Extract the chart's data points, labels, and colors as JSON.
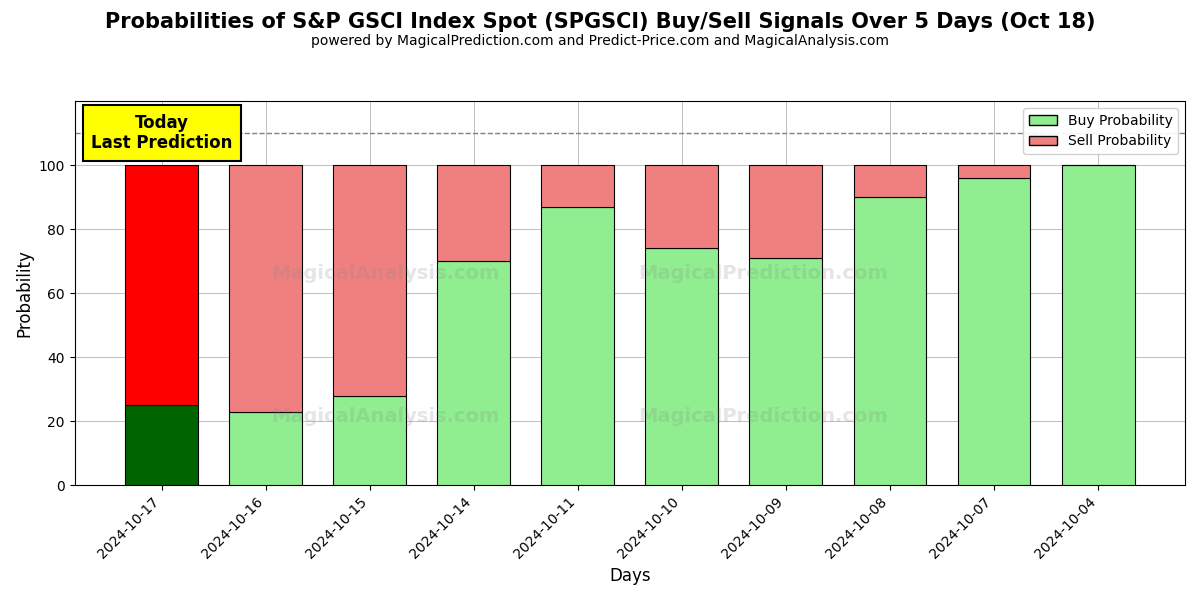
{
  "title": "Probabilities of S&P GSCI Index Spot (SPGSCI) Buy/Sell Signals Over 5 Days (Oct 18)",
  "subtitle": "powered by MagicalPrediction.com and Predict-Price.com and MagicalAnalysis.com",
  "xlabel": "Days",
  "ylabel": "Probability",
  "dates": [
    "2024-10-17",
    "2024-10-16",
    "2024-10-15",
    "2024-10-14",
    "2024-10-11",
    "2024-10-10",
    "2024-10-09",
    "2024-10-08",
    "2024-10-07",
    "2024-10-04"
  ],
  "buy_values": [
    25,
    23,
    28,
    70,
    87,
    74,
    71,
    90,
    96,
    100
  ],
  "sell_values": [
    75,
    77,
    72,
    30,
    13,
    26,
    29,
    10,
    4,
    0
  ],
  "today_bar_buy_color": "#006400",
  "today_bar_sell_color": "#FF0000",
  "regular_buy_color": "#90EE90",
  "regular_sell_color": "#F08080",
  "today_annotation_bg": "#FFFF00",
  "dashed_line_y": 110,
  "ylim": [
    0,
    120
  ],
  "yticks": [
    0,
    20,
    40,
    60,
    80,
    100
  ],
  "legend_buy_label": "Buy Probability",
  "legend_sell_label": "Sell Probability",
  "bar_width": 0.7,
  "title_fontsize": 15,
  "subtitle_fontsize": 10,
  "label_fontsize": 12
}
